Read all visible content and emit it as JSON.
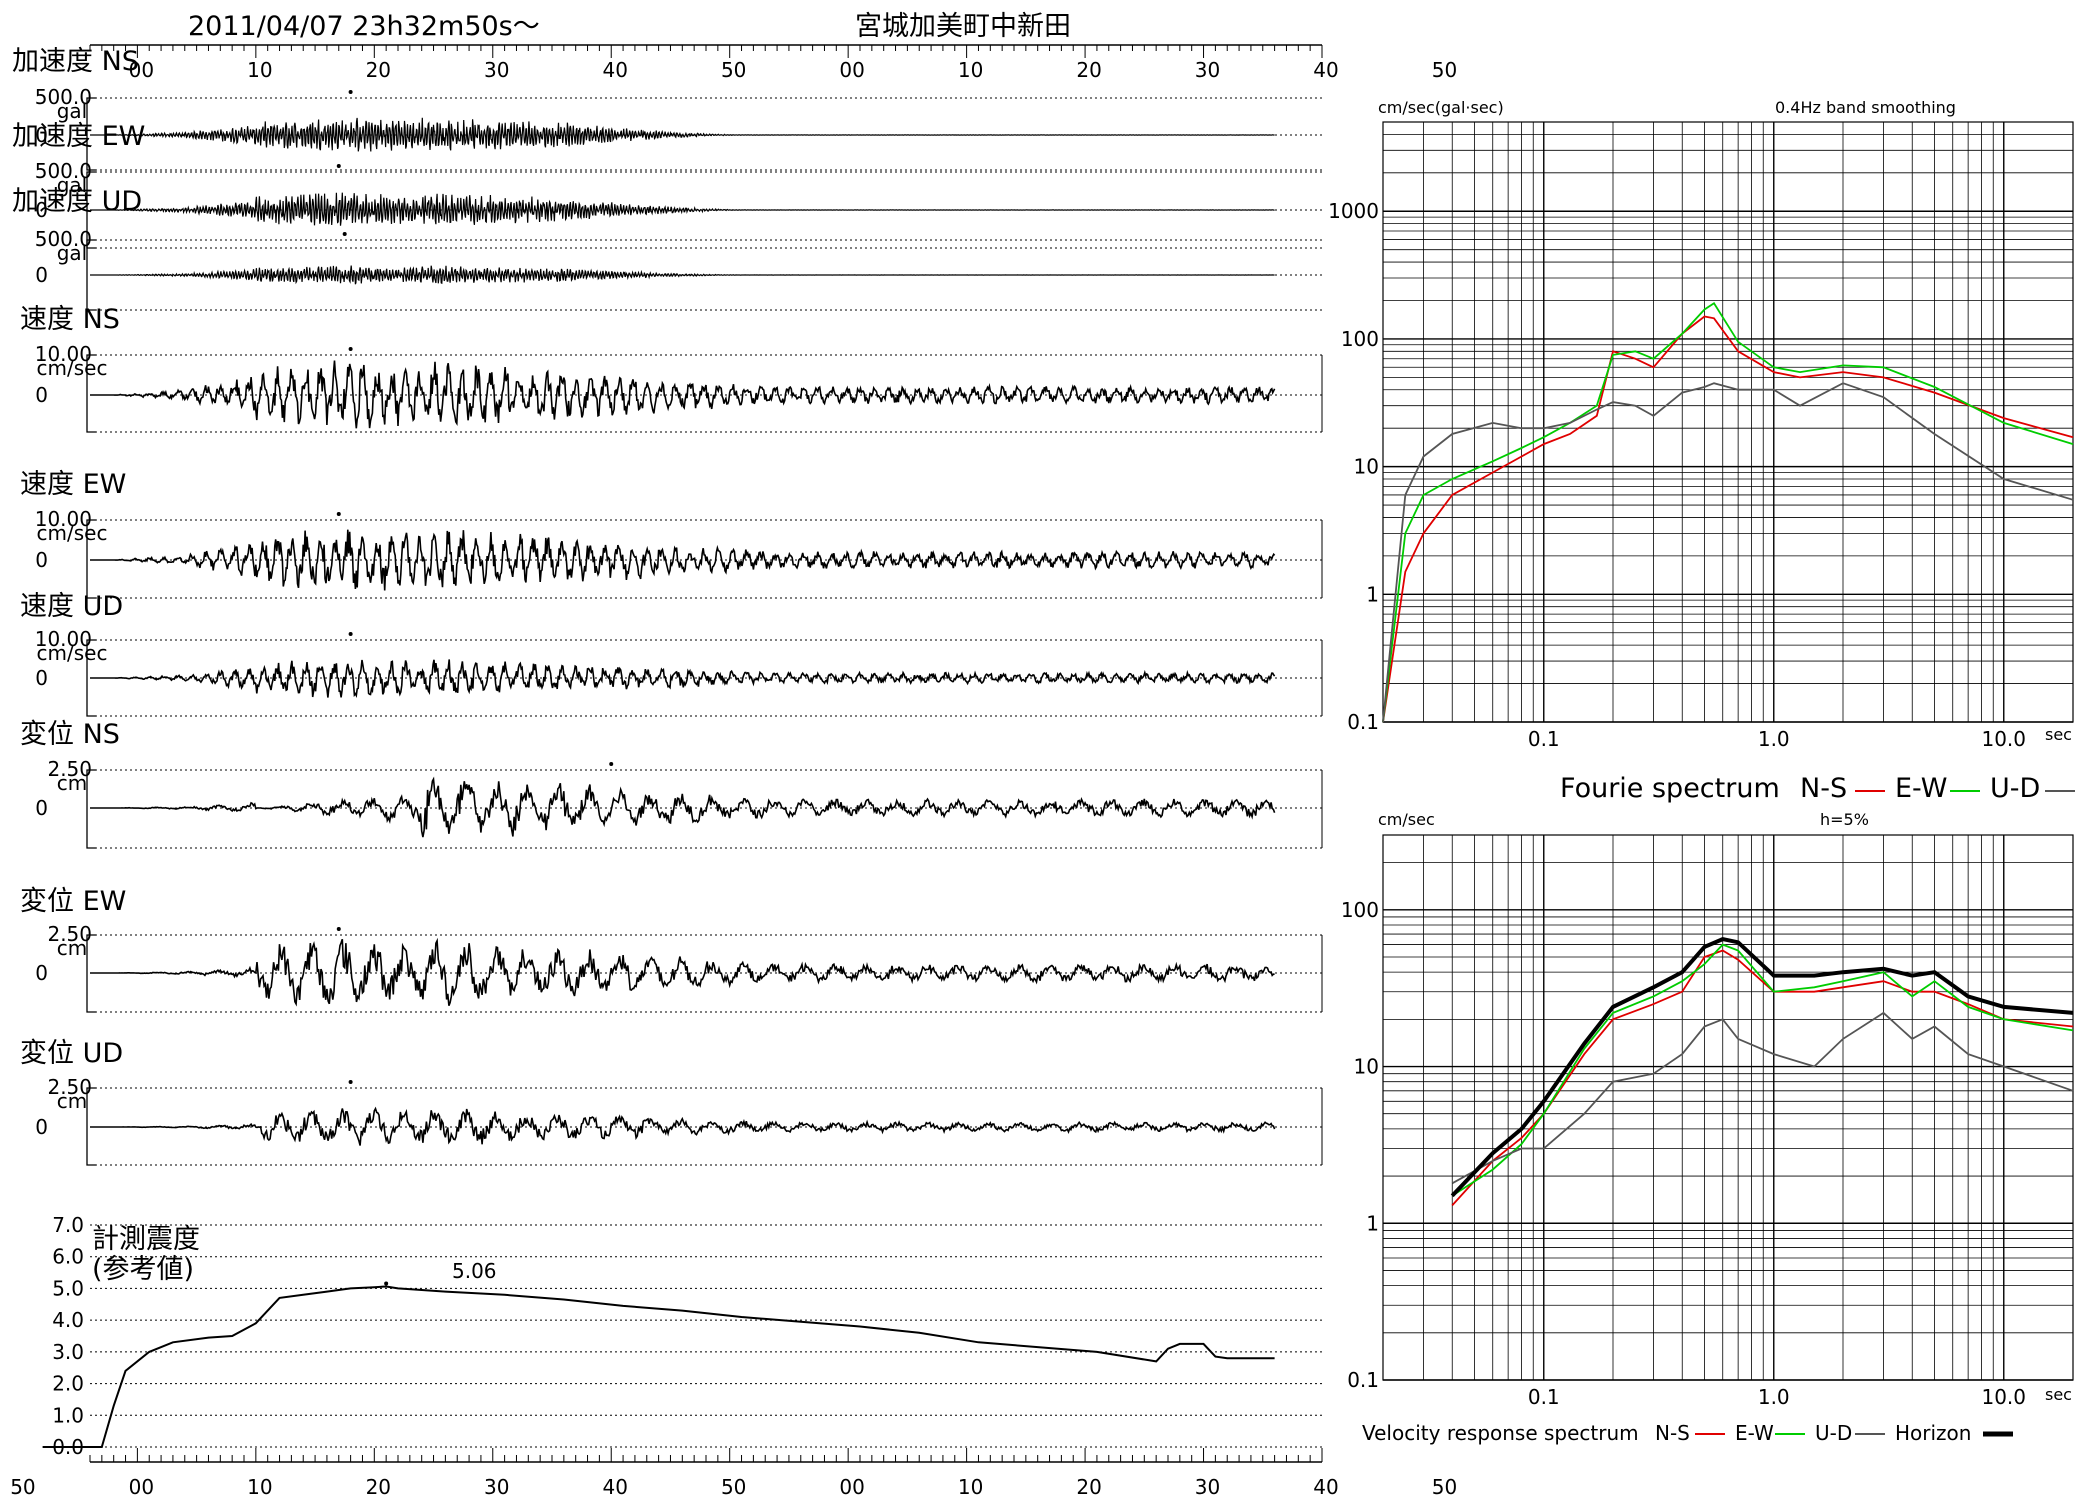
{
  "header": {
    "datetime": "2011/04/07  23h32m50s～",
    "station": "宮城加美町中新田"
  },
  "top_axis_ticks": [
    "00",
    "10",
    "20",
    "30",
    "40",
    "50",
    "00",
    "10",
    "20",
    "30",
    "40",
    "50"
  ],
  "bottom_axis_ticks": [
    "50",
    "00",
    "10",
    "20",
    "30",
    "40",
    "50",
    "00",
    "10",
    "20",
    "30",
    "40",
    "50"
  ],
  "traces": [
    {
      "id": "acc-ns",
      "label": "加速度 NS",
      "max_label": "500.0",
      "unit": "gal",
      "zero_label": "0",
      "kind": "acc",
      "amp": 0.55,
      "peak_t": 22.0
    },
    {
      "id": "acc-ew",
      "label": "加速度 EW",
      "max_label": "500.0",
      "unit": "gal",
      "zero_label": "0",
      "kind": "acc",
      "amp": 0.5,
      "peak_t": 21.0
    },
    {
      "id": "acc-ud",
      "label": "加速度 UD",
      "max_label": "500.0",
      "unit": "gal",
      "zero_label": "0",
      "kind": "acc",
      "amp": 0.3,
      "peak_t": 21.5
    },
    {
      "id": "vel-ns",
      "label": "速度 NS",
      "max_label": "10.00",
      "unit": "cm/sec",
      "zero_label": "0",
      "kind": "vel",
      "amp": 1.0,
      "peak_t": 22.0
    },
    {
      "id": "vel-ew",
      "label": "速度 EW",
      "max_label": "10.00",
      "unit": "cm/sec",
      "zero_label": "0",
      "kind": "vel",
      "amp": 0.95,
      "peak_t": 21.0
    },
    {
      "id": "vel-ud",
      "label": "速度 UD",
      "max_label": "10.00",
      "unit": "cm/sec",
      "zero_label": "0",
      "kind": "vel",
      "amp": 0.6,
      "peak_t": 22.0
    },
    {
      "id": "dis-ns",
      "label": "変位 NS",
      "max_label": "2.50",
      "unit": "cm",
      "zero_label": "0",
      "kind": "dis",
      "amp": 1.0,
      "peak_t": 44.0
    },
    {
      "id": "dis-ew",
      "label": "変位 EW",
      "max_label": "2.50",
      "unit": "cm",
      "zero_label": "0",
      "kind": "dis",
      "amp": 1.0,
      "peak_t": 21.0
    },
    {
      "id": "dis-ud",
      "label": "変位 UD",
      "max_label": "2.50",
      "unit": "cm",
      "zero_label": "0",
      "kind": "dis",
      "amp": 0.55,
      "peak_t": 22.0
    }
  ],
  "intensity": {
    "label_line1": "計測震度",
    "label_line2": "(参考値)",
    "peak_label": "5.06",
    "yticks": [
      "7.0",
      "6.0",
      "5.0",
      "4.0",
      "3.0",
      "2.0",
      "1.0",
      "0.0"
    ]
  },
  "fourier": {
    "unit": "cm/sec(gal·sec)",
    "note": "0.4Hz band smoothing",
    "x_unit": "sec",
    "yticks": [
      "1000",
      "100",
      "10",
      "1",
      "0.1"
    ],
    "xticks": [
      "0.1",
      "1.0",
      "10.0"
    ],
    "legend_title": "Fourie spectrum",
    "legend": [
      {
        "name": "N-S",
        "color": "#e00000"
      },
      {
        "name": "E-W",
        "color": "#00cc00"
      },
      {
        "name": "U-D",
        "color": "#555555"
      }
    ]
  },
  "response": {
    "unit": "cm/sec",
    "note": "h=5%",
    "x_unit": "sec",
    "yticks": [
      "100",
      "10",
      "1",
      "0.1"
    ],
    "xticks": [
      "0.1",
      "1.0",
      "10.0"
    ],
    "legend_title": "Velocity response spectrum",
    "legend": [
      {
        "name": "N-S",
        "color": "#e00000"
      },
      {
        "name": "E-W",
        "color": "#00cc00"
      },
      {
        "name": "U-D",
        "color": "#555555"
      },
      {
        "name": "Horizon",
        "color": "#000000"
      }
    ]
  },
  "chart_data": [
    {
      "type": "line",
      "title": "計測震度 (参考値)",
      "x": [
        -4,
        0,
        1,
        2,
        3,
        5,
        7,
        10,
        12,
        14,
        15,
        16,
        18,
        20,
        22,
        24,
        25,
        26,
        28,
        30,
        35,
        40,
        45,
        50,
        55,
        60,
        65,
        70,
        75,
        80,
        85,
        90,
        91,
        92,
        94,
        95,
        96,
        98,
        100
      ],
      "y": [
        0.0,
        0.0,
        0.0,
        1.3,
        2.4,
        3.0,
        3.3,
        3.45,
        3.5,
        3.9,
        4.3,
        4.7,
        4.8,
        4.9,
        5.0,
        5.04,
        5.06,
        5.0,
        4.95,
        4.9,
        4.8,
        4.65,
        4.45,
        4.3,
        4.1,
        3.95,
        3.8,
        3.6,
        3.3,
        3.15,
        3.0,
        2.7,
        3.1,
        3.25,
        3.25,
        2.85,
        2.8,
        2.8,
        2.8
      ],
      "ylim": [
        0,
        7
      ]
    },
    {
      "type": "line",
      "title": "Fourie spectrum",
      "x_log": true,
      "y_log": true,
      "xlabel": "sec",
      "ylabel": "cm/sec(gal·sec)",
      "xlim": [
        0.02,
        20
      ],
      "ylim": [
        0.1,
        5000
      ],
      "series": [
        {
          "name": "N-S",
          "x": [
            0.02,
            0.025,
            0.03,
            0.04,
            0.06,
            0.08,
            0.1,
            0.13,
            0.17,
            0.2,
            0.25,
            0.3,
            0.4,
            0.5,
            0.55,
            0.7,
            1.0,
            1.3,
            2.0,
            3.0,
            5.0,
            10.0,
            20.0
          ],
          "y": [
            0.1,
            1.5,
            3,
            6,
            9,
            12,
            15,
            18,
            25,
            80,
            70,
            60,
            110,
            150,
            145,
            80,
            55,
            50,
            55,
            50,
            38,
            24,
            17
          ]
        },
        {
          "name": "E-W",
          "x": [
            0.02,
            0.025,
            0.03,
            0.04,
            0.06,
            0.08,
            0.1,
            0.13,
            0.17,
            0.2,
            0.25,
            0.3,
            0.4,
            0.5,
            0.55,
            0.7,
            1.0,
            1.3,
            2.0,
            3.0,
            5.0,
            10.0,
            20.0
          ],
          "y": [
            0.1,
            3,
            6,
            8,
            11,
            14,
            17,
            22,
            30,
            75,
            80,
            70,
            110,
            170,
            190,
            95,
            60,
            55,
            62,
            60,
            42,
            22,
            15
          ]
        },
        {
          "name": "U-D",
          "x": [
            0.02,
            0.025,
            0.03,
            0.04,
            0.06,
            0.08,
            0.1,
            0.13,
            0.17,
            0.2,
            0.25,
            0.3,
            0.4,
            0.5,
            0.55,
            0.7,
            1.0,
            1.3,
            2.0,
            3.0,
            5.0,
            10.0,
            20.0
          ],
          "y": [
            0.1,
            6,
            12,
            18,
            22,
            20,
            20,
            22,
            28,
            32,
            30,
            25,
            38,
            42,
            45,
            40,
            40,
            30,
            45,
            35,
            18,
            8,
            5.5
          ]
        }
      ]
    },
    {
      "type": "line",
      "title": "Velocity response spectrum",
      "x_log": true,
      "y_log": true,
      "xlabel": "sec",
      "ylabel": "cm/sec",
      "xlim": [
        0.02,
        20
      ],
      "ylim": [
        0.1,
        300
      ],
      "series": [
        {
          "name": "N-S",
          "x": [
            0.04,
            0.06,
            0.08,
            0.1,
            0.15,
            0.2,
            0.3,
            0.4,
            0.5,
            0.6,
            0.7,
            1.0,
            1.5,
            2.0,
            3.0,
            4.0,
            5.0,
            7.0,
            10.0,
            20.0
          ],
          "y": [
            1.3,
            2.5,
            3.5,
            5,
            12,
            20,
            25,
            30,
            50,
            55,
            48,
            30,
            30,
            32,
            35,
            30,
            30,
            25,
            20,
            18
          ]
        },
        {
          "name": "E-W",
          "x": [
            0.04,
            0.06,
            0.08,
            0.1,
            0.15,
            0.2,
            0.3,
            0.4,
            0.5,
            0.6,
            0.7,
            1.0,
            1.5,
            2.0,
            3.0,
            4.0,
            5.0,
            7.0,
            10.0,
            20.0
          ],
          "y": [
            1.5,
            2.2,
            3.2,
            5,
            13,
            22,
            28,
            35,
            45,
            60,
            55,
            30,
            32,
            35,
            40,
            28,
            35,
            24,
            20,
            17
          ]
        },
        {
          "name": "U-D",
          "x": [
            0.04,
            0.06,
            0.08,
            0.1,
            0.15,
            0.2,
            0.3,
            0.4,
            0.5,
            0.6,
            0.7,
            1.0,
            1.5,
            2.0,
            3.0,
            4.0,
            5.0,
            7.0,
            10.0,
            20.0
          ],
          "y": [
            1.8,
            2.5,
            3,
            3,
            5,
            8,
            9,
            12,
            18,
            20,
            15,
            12,
            10,
            15,
            22,
            15,
            18,
            12,
            10,
            7
          ]
        },
        {
          "name": "Horizon",
          "x": [
            0.04,
            0.06,
            0.08,
            0.1,
            0.15,
            0.2,
            0.3,
            0.4,
            0.5,
            0.6,
            0.7,
            1.0,
            1.5,
            2.0,
            3.0,
            4.0,
            5.0,
            7.0,
            10.0,
            20.0
          ],
          "y": [
            1.5,
            2.8,
            4,
            6,
            14,
            24,
            32,
            40,
            58,
            65,
            62,
            38,
            38,
            40,
            42,
            38,
            40,
            28,
            24,
            22
          ]
        }
      ]
    }
  ]
}
